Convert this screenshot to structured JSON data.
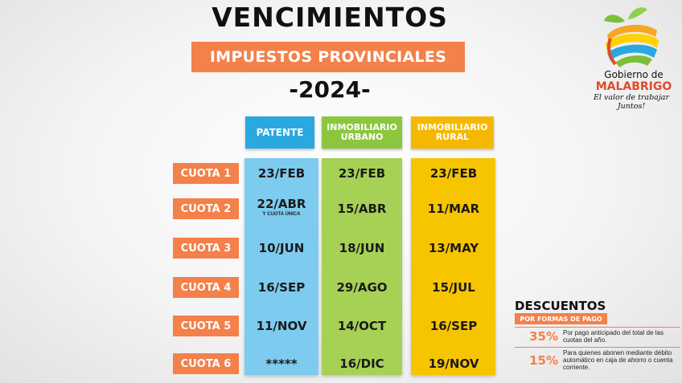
{
  "header": {
    "title": "VENCIMIENTOS",
    "subtitle": "IMPUESTOS PROVINCIALES",
    "year": "-2024-"
  },
  "logo": {
    "name": "Gobierno de",
    "town": "MALABRIGO",
    "tagline": "El valor de trabajar Juntos!"
  },
  "columns": [
    {
      "line1": "PATENTE",
      "line2": "",
      "color": "#2aa8e0"
    },
    {
      "line1": "INMOBILIARIO",
      "line2": "URBANO",
      "color": "#8cc63f"
    },
    {
      "line1": "INMOBILIARIO",
      "line2": "RURAL",
      "color": "#f5b800"
    }
  ],
  "body_colors": {
    "patente": "#7dcbef",
    "urbano": "#a6d155",
    "rural": "#f7c400"
  },
  "rows": [
    {
      "label": "CUOTA 1",
      "patente": "23/FEB",
      "urbano": "23/FEB",
      "rural": "23/FEB"
    },
    {
      "label": "CUOTA 2",
      "patente": "22/ABR",
      "patente_note": "Y CUOTA ÚNICA",
      "urbano": "15/ABR",
      "rural": "11/MAR"
    },
    {
      "label": "CUOTA 3",
      "patente": "10/JUN",
      "urbano": "18/JUN",
      "rural": "13/MAY"
    },
    {
      "label": "CUOTA 4",
      "patente": "16/SEP",
      "urbano": "29/AGO",
      "rural": "15/JUL"
    },
    {
      "label": "CUOTA 5",
      "patente": "11/NOV",
      "urbano": "14/OCT",
      "rural": "16/SEP"
    },
    {
      "label": "CUOTA 6",
      "patente": "*****",
      "urbano": "16/DIC",
      "rural": "19/NOV"
    }
  ],
  "discounts": {
    "title": "DESCUENTOS",
    "subtitle": "POR FORMAS DE PAGO",
    "items": [
      {
        "percent": "35%",
        "text": "Por pago anticipado del total de las cuotas del año."
      },
      {
        "percent": "15%",
        "text": "Para quienes abonen mediante débito automático en caja de ahorro o cuenta corriente."
      }
    ]
  },
  "accent_color": "#f4804a"
}
